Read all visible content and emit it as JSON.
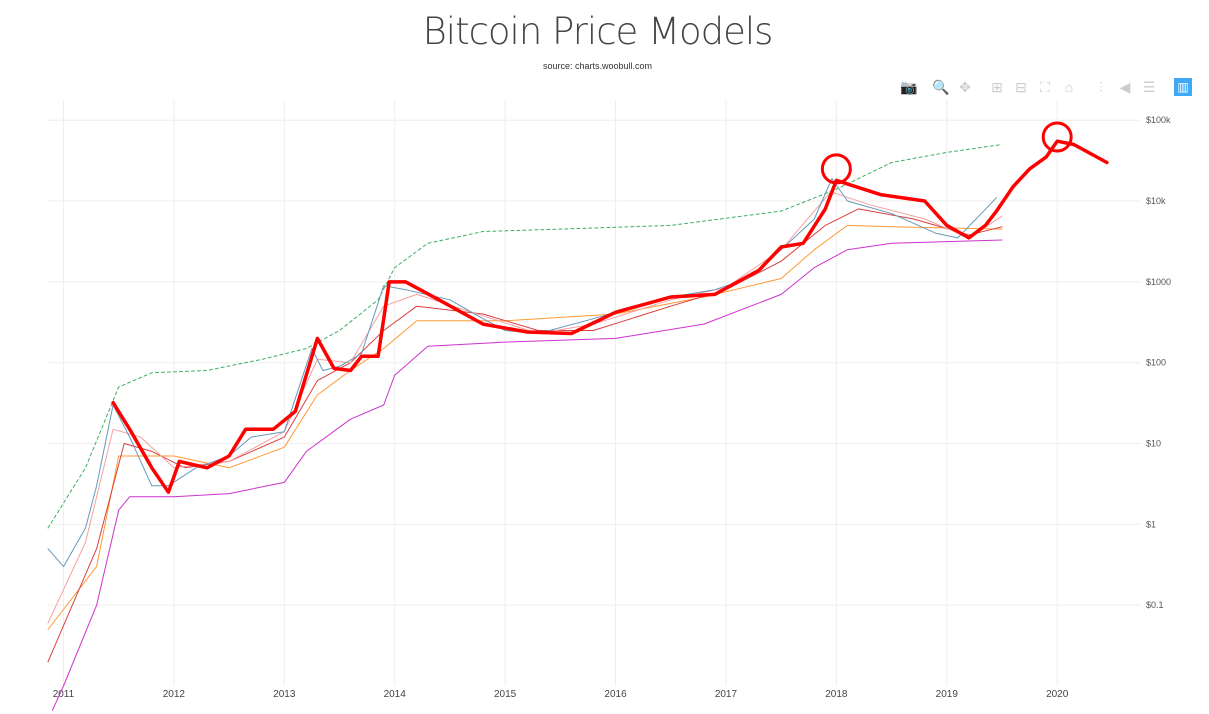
{
  "title": "Bitcoin Price Models",
  "subtitle": "source: charts.woobull.com",
  "toolbar": [
    {
      "icon": "camera-icon",
      "label": "Download plot as a png"
    },
    {
      "icon": "zoom-icon",
      "label": "Zoom"
    },
    {
      "icon": "pan-icon",
      "label": "Pan"
    },
    {
      "icon": "zoom-in-icon",
      "label": "Zoom in"
    },
    {
      "icon": "zoom-out-icon",
      "label": "Zoom out"
    },
    {
      "icon": "autoscale-icon",
      "label": "Autoscale"
    },
    {
      "icon": "home-icon",
      "label": "Reset axes"
    },
    {
      "icon": "spikelines-icon",
      "label": "Toggle Spike Lines"
    },
    {
      "icon": "hover-closest-icon",
      "label": "Show closest data on hover"
    },
    {
      "icon": "hover-compare-icon",
      "label": "Compare data on hover"
    },
    {
      "icon": "plotly-logo-icon",
      "label": "Produced with Plotly"
    }
  ],
  "chart_data": {
    "type": "line",
    "title": "Bitcoin Price Models",
    "subtitle": "source: charts.woobull.com",
    "xlabel": "",
    "ylabel": "",
    "xlim": [
      2010.86,
      2020.75
    ],
    "ylim_log10": [
      -2,
      5.25
    ],
    "yscale": "log",
    "grid": true,
    "legend": "none",
    "x_ticks": [
      "2011",
      "2012",
      "2013",
      "2014",
      "2015",
      "2016",
      "2017",
      "2018",
      "2019",
      "2020"
    ],
    "y_ticks": [
      {
        "v": 100000,
        "label": "$100k"
      },
      {
        "v": 10000,
        "label": "$10k"
      },
      {
        "v": 1000,
        "label": "$1000"
      },
      {
        "v": 100,
        "label": "$100"
      },
      {
        "v": 10,
        "label": "$10"
      },
      {
        "v": 1,
        "label": "$1"
      },
      {
        "v": 0.1,
        "label": "$0.1"
      }
    ],
    "series": [
      {
        "name": "top model",
        "color": "#3cae63",
        "dash": true,
        "points": [
          [
            2010.86,
            0.9
          ],
          [
            2011.2,
            5
          ],
          [
            2011.5,
            50
          ],
          [
            2011.8,
            75
          ],
          [
            2012.3,
            80
          ],
          [
            2012.8,
            110
          ],
          [
            2013.2,
            150
          ],
          [
            2013.5,
            250
          ],
          [
            2013.85,
            600
          ],
          [
            2014.0,
            1500
          ],
          [
            2014.3,
            3000
          ],
          [
            2014.8,
            4200
          ],
          [
            2015.5,
            4500
          ],
          [
            2016.5,
            5000
          ],
          [
            2017.5,
            7500
          ],
          [
            2018.0,
            14000
          ],
          [
            2018.5,
            30000
          ],
          [
            2019.0,
            40000
          ],
          [
            2019.5,
            50000
          ]
        ]
      },
      {
        "name": "bottom model",
        "color": "#cc33cc",
        "points": [
          [
            2010.9,
            0.005
          ],
          [
            2011.0,
            0.01
          ],
          [
            2011.3,
            0.1
          ],
          [
            2011.5,
            1.5
          ],
          [
            2011.6,
            2.2
          ],
          [
            2012,
            2.2
          ],
          [
            2012.5,
            2.4
          ],
          [
            2013.0,
            3.3
          ],
          [
            2013.2,
            8
          ],
          [
            2013.6,
            20
          ],
          [
            2013.9,
            30
          ],
          [
            2014.0,
            70
          ],
          [
            2014.3,
            160
          ],
          [
            2015,
            180
          ],
          [
            2016,
            200
          ],
          [
            2016.8,
            300
          ],
          [
            2017.5,
            700
          ],
          [
            2017.8,
            1500
          ],
          [
            2018.1,
            2500
          ],
          [
            2018.5,
            3000
          ],
          [
            2019.5,
            3300
          ]
        ]
      },
      {
        "name": "orange model",
        "color": "#ff9933",
        "points": [
          [
            2010.86,
            0.05
          ],
          [
            2011.3,
            0.3
          ],
          [
            2011.5,
            7
          ],
          [
            2012,
            7
          ],
          [
            2012.5,
            5
          ],
          [
            2013.0,
            9
          ],
          [
            2013.3,
            40
          ],
          [
            2013.6,
            80
          ],
          [
            2013.9,
            150
          ],
          [
            2014.2,
            330
          ],
          [
            2015,
            330
          ],
          [
            2016,
            400
          ],
          [
            2016.8,
            650
          ],
          [
            2017.5,
            1100
          ],
          [
            2017.8,
            2500
          ],
          [
            2018.1,
            5000
          ],
          [
            2018.5,
            4800
          ],
          [
            2019.5,
            4500
          ]
        ]
      },
      {
        "name": "red moving average",
        "color": "#d94040",
        "points": [
          [
            2010.86,
            0.02
          ],
          [
            2011.3,
            0.5
          ],
          [
            2011.55,
            10
          ],
          [
            2011.8,
            8
          ],
          [
            2012.1,
            5
          ],
          [
            2012.5,
            6
          ],
          [
            2013.0,
            12
          ],
          [
            2013.3,
            60
          ],
          [
            2013.6,
            100
          ],
          [
            2013.9,
            250
          ],
          [
            2014.2,
            500
          ],
          [
            2014.8,
            400
          ],
          [
            2015.3,
            250
          ],
          [
            2015.8,
            250
          ],
          [
            2016.5,
            500
          ],
          [
            2017.0,
            800
          ],
          [
            2017.5,
            1800
          ],
          [
            2017.9,
            5000
          ],
          [
            2018.2,
            8000
          ],
          [
            2018.7,
            6000
          ],
          [
            2019.2,
            3800
          ],
          [
            2019.5,
            4800
          ]
        ]
      },
      {
        "name": "pink moving average",
        "color": "#f4a0a0",
        "points": [
          [
            2010.86,
            0.06
          ],
          [
            2011.2,
            0.6
          ],
          [
            2011.45,
            15
          ],
          [
            2011.7,
            12
          ],
          [
            2012.0,
            5
          ],
          [
            2012.5,
            6
          ],
          [
            2013.0,
            14
          ],
          [
            2013.3,
            110
          ],
          [
            2013.6,
            100
          ],
          [
            2013.9,
            500
          ],
          [
            2014.2,
            700
          ],
          [
            2014.8,
            380
          ],
          [
            2015.3,
            230
          ],
          [
            2015.8,
            300
          ],
          [
            2016.5,
            600
          ],
          [
            2017.0,
            850
          ],
          [
            2017.5,
            2500
          ],
          [
            2017.95,
            13000
          ],
          [
            2018.3,
            9000
          ],
          [
            2018.8,
            6000
          ],
          [
            2019.2,
            3500
          ],
          [
            2019.5,
            6500
          ]
        ]
      },
      {
        "name": "price",
        "color": "#6699bb",
        "points": [
          [
            2010.86,
            0.5
          ],
          [
            2011.0,
            0.3
          ],
          [
            2011.2,
            0.9
          ],
          [
            2011.3,
            3
          ],
          [
            2011.45,
            30
          ],
          [
            2011.6,
            12
          ],
          [
            2011.8,
            3
          ],
          [
            2011.95,
            3
          ],
          [
            2012.2,
            5
          ],
          [
            2012.5,
            7
          ],
          [
            2012.7,
            12
          ],
          [
            2013.0,
            14
          ],
          [
            2013.25,
            150
          ],
          [
            2013.35,
            80
          ],
          [
            2013.5,
            90
          ],
          [
            2013.7,
            130
          ],
          [
            2013.9,
            900
          ],
          [
            2014.1,
            800
          ],
          [
            2014.5,
            600
          ],
          [
            2014.8,
            350
          ],
          [
            2015.0,
            250
          ],
          [
            2015.3,
            230
          ],
          [
            2015.8,
            350
          ],
          [
            2016.0,
            420
          ],
          [
            2016.5,
            650
          ],
          [
            2016.9,
            800
          ],
          [
            2017.2,
            1100
          ],
          [
            2017.5,
            2500
          ],
          [
            2017.8,
            6000
          ],
          [
            2017.96,
            19000
          ],
          [
            2018.1,
            10000
          ],
          [
            2018.5,
            7000
          ],
          [
            2018.9,
            4000
          ],
          [
            2019.1,
            3500
          ],
          [
            2019.45,
            11000
          ]
        ]
      },
      {
        "name": "hand-drawn annotation",
        "color": "#ff0000",
        "width": 3.5,
        "points": [
          [
            2011.45,
            32
          ],
          [
            2011.6,
            15
          ],
          [
            2011.8,
            5
          ],
          [
            2011.95,
            2.5
          ],
          [
            2012.05,
            6
          ],
          [
            2012.3,
            5
          ],
          [
            2012.5,
            7
          ],
          [
            2012.65,
            15
          ],
          [
            2012.9,
            15
          ],
          [
            2013.1,
            25
          ],
          [
            2013.3,
            200
          ],
          [
            2013.45,
            85
          ],
          [
            2013.6,
            80
          ],
          [
            2013.7,
            120
          ],
          [
            2013.85,
            120
          ],
          [
            2013.95,
            1000
          ],
          [
            2014.1,
            1000
          ],
          [
            2014.4,
            600
          ],
          [
            2014.8,
            300
          ],
          [
            2015.2,
            240
          ],
          [
            2015.6,
            230
          ],
          [
            2016.0,
            420
          ],
          [
            2016.5,
            650
          ],
          [
            2016.9,
            700
          ],
          [
            2017.3,
            1400
          ],
          [
            2017.5,
            2700
          ],
          [
            2017.7,
            3000
          ],
          [
            2017.9,
            8000
          ],
          [
            2018.0,
            18000
          ],
          [
            2018.4,
            12000
          ],
          [
            2018.8,
            10000
          ],
          [
            2019.0,
            5000
          ],
          [
            2019.2,
            3500
          ],
          [
            2019.35,
            5000
          ],
          [
            2019.45,
            7500
          ],
          [
            2019.6,
            15000
          ],
          [
            2019.75,
            25000
          ],
          [
            2019.9,
            35000
          ],
          [
            2020.0,
            55000
          ],
          [
            2020.15,
            50000
          ],
          [
            2020.45,
            30000
          ]
        ],
        "circles": [
          [
            2018.0,
            25000
          ],
          [
            2020.0,
            62000
          ]
        ]
      }
    ]
  }
}
